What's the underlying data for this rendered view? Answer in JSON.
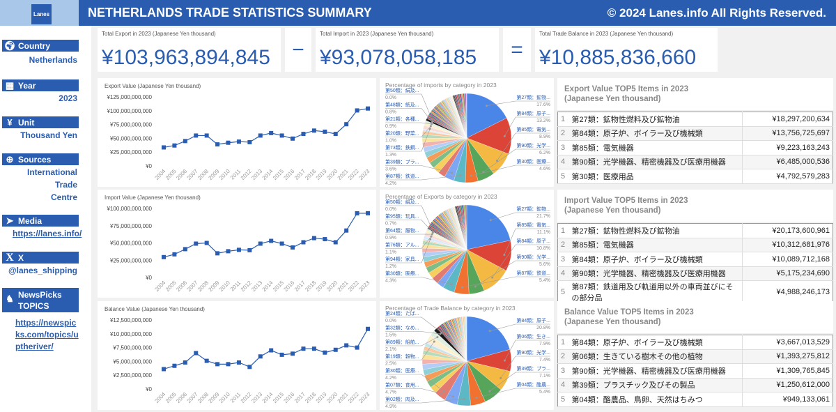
{
  "header": {
    "logo": "Lanes",
    "title": "NETHERLANDS TRADE STATISTICS SUMMARY",
    "copyright": "© 2024 Lanes.info All Rights Reserved."
  },
  "sidebar": {
    "country": {
      "label": "Country",
      "value": "Netherlands"
    },
    "year": {
      "label": "Year",
      "value": "2023"
    },
    "unit": {
      "label": "Unit",
      "value": "Thousand Yen"
    },
    "sources": {
      "label": "Sources",
      "values": [
        "International",
        "Trade",
        "Centre"
      ]
    },
    "media": {
      "label": "Media",
      "link": "https://lanes.info/"
    },
    "x": {
      "label": "X",
      "handle": "@lanes_shipping"
    },
    "newspicks": {
      "label1": "NewsPicks",
      "label2": "TOPICS",
      "link": [
        "https://newspic",
        "ks.com/topics/u",
        "ptheriver/"
      ]
    }
  },
  "kpi": {
    "export": {
      "label": "Total Export in 2023 (Japanese Yen thousand)",
      "value": "¥103,963,894,845"
    },
    "minus": "−",
    "import": {
      "label": "Total Import in 2023 (Japanese Yen thousand)",
      "value": "¥93,078,058,185"
    },
    "equals": "=",
    "balance": {
      "label": "Total Trade Balance in 2023 (Japanese Yen thousand)",
      "value": "¥10,885,836,660"
    }
  },
  "colors": {
    "brand": "#2a5db0",
    "line": "#2a5db0"
  },
  "chart_data": [
    {
      "type": "line",
      "title": "Export Value (Japanese Yen thousand)",
      "x": [
        "2004",
        "2005",
        "2006",
        "2007",
        "2008",
        "2009",
        "2010",
        "2011",
        "2012",
        "2013",
        "2014",
        "2015",
        "2016",
        "2017",
        "2018",
        "2019",
        "2020",
        "2021",
        "2022",
        "2023"
      ],
      "values": [
        33500000000,
        37000000000,
        45000000000,
        55000000000,
        55000000000,
        39000000000,
        42000000000,
        44000000000,
        43000000000,
        55000000000,
        59500000000,
        55000000000,
        49500000000,
        58000000000,
        64000000000,
        62000000000,
        58000000000,
        75500000000,
        100500000000,
        103963894845
      ],
      "ylim": [
        0,
        125000000000
      ],
      "yticks": [
        "¥0",
        "¥25,000,000,000",
        "¥50,000,000,000",
        "¥75,000,000,000",
        "¥100,000,000,000",
        "¥125,000,000,000"
      ]
    },
    {
      "type": "line",
      "title": "Import Value (Japanese Yen thousand)",
      "x": [
        "2004",
        "2005",
        "2006",
        "2007",
        "2008",
        "2009",
        "2010",
        "2011",
        "2012",
        "2013",
        "2014",
        "2015",
        "2016",
        "2017",
        "2018",
        "2019",
        "2020",
        "2021",
        "2022",
        "2023"
      ],
      "values": [
        29500000000,
        33500000000,
        41000000000,
        49000000000,
        50000000000,
        35000000000,
        38000000000,
        40000000000,
        39500000000,
        49000000000,
        53000000000,
        49000000000,
        43500000000,
        51000000000,
        57000000000,
        55500000000,
        51000000000,
        68000000000,
        93000000000,
        93078058185
      ],
      "ylim": [
        0,
        100000000000
      ],
      "yticks": [
        "¥0",
        "¥25,000,000,000",
        "¥50,000,000,000",
        "¥75,000,000,000",
        "¥100,000,000,000"
      ]
    },
    {
      "type": "line",
      "title": "Balance Value (Japanese Yen thousand)",
      "x": [
        "2004",
        "2005",
        "2006",
        "2007",
        "2008",
        "2009",
        "2010",
        "2011",
        "2012",
        "2013",
        "2014",
        "2015",
        "2016",
        "2017",
        "2018",
        "2019",
        "2020",
        "2021",
        "2022",
        "2023"
      ],
      "values": [
        3600000000,
        4200000000,
        4800000000,
        6500000000,
        5100000000,
        4500000000,
        4500000000,
        4800000000,
        4000000000,
        5900000000,
        7000000000,
        6200000000,
        6400000000,
        7300000000,
        7300000000,
        6600000000,
        7100000000,
        7900000000,
        7500000000,
        10885836660
      ],
      "ylim": [
        0,
        12500000000
      ],
      "yticks": [
        "¥0",
        "¥2,500,000,000",
        "¥5,000,000,000",
        "¥7,500,000,000",
        "¥10,000,000,000",
        "¥12,500,000,000"
      ]
    },
    {
      "type": "pie",
      "title": "Percentage of imports by category in 2023",
      "slices": [
        {
          "label": "第27類：鉱物...",
          "value": 17.6
        },
        {
          "label": "第84類：原子...",
          "value": 13.2
        },
        {
          "label": "第85類：電気...",
          "value": 8.9
        },
        {
          "label": "第90類：光学...",
          "value": 6.2
        },
        {
          "label": "第30類：医療...",
          "value": 4.6
        },
        {
          "label": "第87類：鉄道...",
          "value": 4.2
        },
        {
          "label": "第39類：プラ...",
          "value": 3.6
        },
        {
          "label": "第73類：鉄鋼...",
          "value": 1.3
        },
        {
          "label": "第20類：野菜...",
          "value": 1.0
        },
        {
          "label": "第21類：各種...",
          "value": 0.9
        },
        {
          "label": "第48類：紙及...",
          "value": 0.8
        },
        {
          "label": "第50類：絹及...",
          "value": 0.0
        }
      ]
    },
    {
      "type": "pie",
      "title": "Percentage of Exports by category in 2023",
      "slices": [
        {
          "label": "第27類：鉱物...",
          "value": 21.7
        },
        {
          "label": "第85類：電気...",
          "value": 11.1
        },
        {
          "label": "第84類：原子...",
          "value": 10.8
        },
        {
          "label": "第90類：光学...",
          "value": 5.6
        },
        {
          "label": "第87類：鉄道...",
          "value": 5.4
        },
        {
          "label": "第30類：医療...",
          "value": 4.3
        },
        {
          "label": "第94類：家具...",
          "value": 1.2
        },
        {
          "label": "第76類：アル...",
          "value": 1.1
        },
        {
          "label": "第64類：履物...",
          "value": 0.9
        },
        {
          "label": "第95類：玩具...",
          "value": 0.7
        },
        {
          "label": "第50類：絹及...",
          "value": 0.0
        }
      ]
    },
    {
      "type": "pie",
      "title": "Percentage of Trade Balance by category in 2023",
      "slices": [
        {
          "label": "第84類：原子...",
          "value": 20.8
        },
        {
          "label": "第06類：生き...",
          "value": 7.9
        },
        {
          "label": "第90類：光学...",
          "value": 7.4
        },
        {
          "label": "第39類：プラ...",
          "value": 7.1
        },
        {
          "label": "第04類：酪農...",
          "value": 5.4
        },
        {
          "label": "第02類：肉及...",
          "value": 4.9
        },
        {
          "label": "第07類：食用...",
          "value": 4.7
        },
        {
          "label": "第30類：医療...",
          "value": 4.2
        },
        {
          "label": "第19類：穀物...",
          "value": 2.5
        },
        {
          "label": "第89類：船舶...",
          "value": 2.1
        },
        {
          "label": "第32類：なめ...",
          "value": 1.5
        },
        {
          "label": "第24類：たば...",
          "value": 0.0
        }
      ]
    }
  ],
  "tables": {
    "export": {
      "title1": "Export Value TOP5 Items in 2023",
      "title2": "(Japanese Yen thousand)",
      "rows": [
        {
          "rank": "1",
          "item": "第27類：鉱物性燃料及び鉱物油",
          "value": "¥18,297,200,634"
        },
        {
          "rank": "2",
          "item": "第84類：原子炉、ボイラー及び機械類",
          "value": "¥13,756,725,697"
        },
        {
          "rank": "3",
          "item": "第85類：電気機器",
          "value": "¥9,223,163,243"
        },
        {
          "rank": "4",
          "item": "第90類：光学機器、精密機器及び医療用機器",
          "value": "¥6,485,000,536"
        },
        {
          "rank": "5",
          "item": "第30類：医療用品",
          "value": "¥4,792,579,283"
        }
      ]
    },
    "import": {
      "title1": "Import Value TOP5 Items in 2023",
      "title2": "(Japanese Yen thousand)",
      "rows": [
        {
          "rank": "1",
          "item": "第27類：鉱物性燃料及び鉱物油",
          "value": "¥20,173,600,961"
        },
        {
          "rank": "2",
          "item": "第85類：電気機器",
          "value": "¥10,312,681,976"
        },
        {
          "rank": "3",
          "item": "第84類：原子炉、ボイラー及び機械類",
          "value": "¥10,089,712,168"
        },
        {
          "rank": "4",
          "item": "第90類：光学機器、精密機器及び医療用機器",
          "value": "¥5,175,234,690"
        },
        {
          "rank": "5",
          "item": "第87類：鉄道用及び軌道用以外の車両並びにその部分品",
          "value": "¥4,988,246,173"
        }
      ]
    },
    "balance": {
      "title1": "Balance Value TOP5 Items in 2023",
      "title2": "(Japanese Yen thousand)",
      "rows": [
        {
          "rank": "1",
          "item": "第84類：原子炉、ボイラー及び機械類",
          "value": "¥3,667,013,529"
        },
        {
          "rank": "2",
          "item": "第06類：生きている樹木その他の植物",
          "value": "¥1,393,275,812"
        },
        {
          "rank": "3",
          "item": "第90類：光学機器、精密機器及び医療用機器",
          "value": "¥1,309,765,845"
        },
        {
          "rank": "4",
          "item": "第39類：プラスチック及びその製品",
          "value": "¥1,250,612,000"
        },
        {
          "rank": "5",
          "item": "第04類：酪農品、鳥卵、天然はちみつ",
          "value": "¥949,133,061"
        }
      ]
    }
  }
}
